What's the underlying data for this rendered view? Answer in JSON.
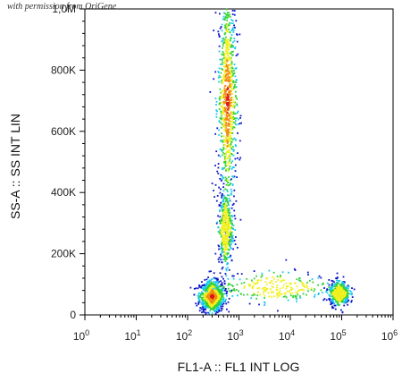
{
  "watermark": "with permission from OriGene",
  "chart_data": {
    "type": "scatter",
    "title": "",
    "xlabel": "FL1-A :: FL1 INT LOG",
    "ylabel": "SS-A :: SS INT LIN",
    "x_scale": "log",
    "xlim": [
      1,
      1000000
    ],
    "ylim": [
      0,
      1000000
    ],
    "x_ticks": [
      {
        "base": "10",
        "exp": "0"
      },
      {
        "base": "10",
        "exp": "1"
      },
      {
        "base": "10",
        "exp": "2"
      },
      {
        "base": "10",
        "exp": "3"
      },
      {
        "base": "10",
        "exp": "4"
      },
      {
        "base": "10",
        "exp": "5"
      },
      {
        "base": "10",
        "exp": "6"
      }
    ],
    "y_ticks": [
      "0",
      "200K",
      "400K",
      "600K",
      "800K",
      "1,0M"
    ],
    "y_tick_values": [
      0,
      200000,
      400000,
      600000,
      800000,
      1000000
    ],
    "grid": false,
    "legend": "none",
    "colormap": [
      "#0a14c8",
      "#18c8f0",
      "#32d232",
      "#f0f01e",
      "#f08c14",
      "#dc1414"
    ],
    "populations": [
      {
        "x": 300,
        "y": 60000,
        "x_spread_decades": 0.12,
        "y_spread": 25000,
        "density": "high"
      },
      {
        "x": 600,
        "y": 700000,
        "x_spread_decades": 0.09,
        "y_spread": 180000,
        "density": "high"
      },
      {
        "x": 550,
        "y": 280000,
        "x_spread_decades": 0.07,
        "y_spread": 60000,
        "density": "medium"
      },
      {
        "x": 5000,
        "y": 90000,
        "x_spread_decades": 0.6,
        "y_spread": 25000,
        "density": "low"
      },
      {
        "x": 90000,
        "y": 70000,
        "x_spread_decades": 0.1,
        "y_spread": 20000,
        "density": "medium"
      }
    ]
  }
}
